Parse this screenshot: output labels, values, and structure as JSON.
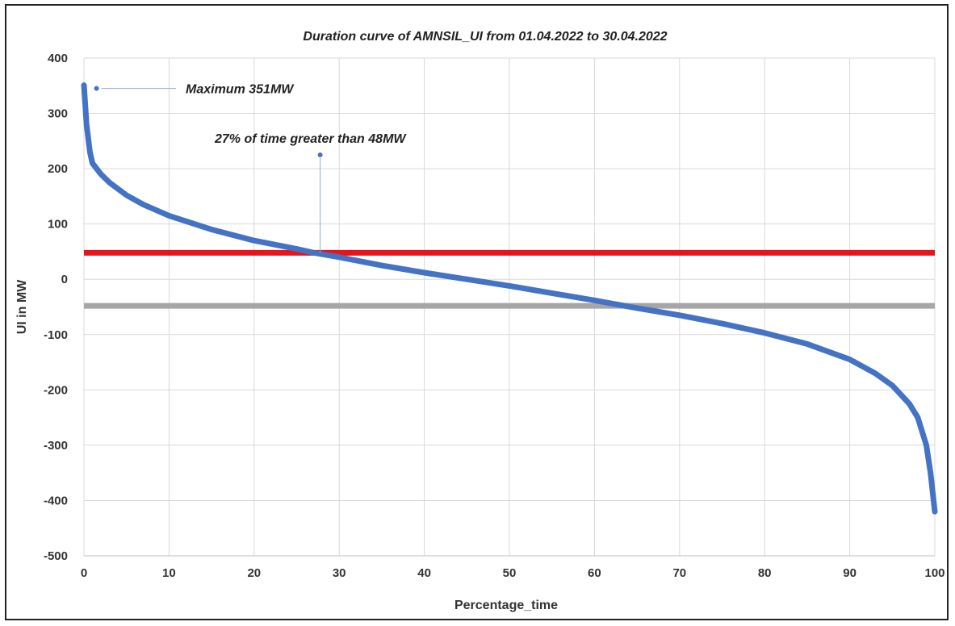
{
  "chart_data": {
    "type": "line",
    "title": "Duration curve of AMNSIL_UI from 01.04.2022 to 30.04.2022",
    "xlabel": "Percentage_time",
    "ylabel": "UI in MW",
    "xlim": [
      0,
      100
    ],
    "ylim": [
      -500,
      400
    ],
    "xticks": [
      0,
      10,
      20,
      30,
      40,
      50,
      60,
      70,
      80,
      90,
      100
    ],
    "yticks": [
      400,
      300,
      200,
      100,
      0,
      -100,
      -200,
      -300,
      -400,
      -500
    ],
    "grid": true,
    "legend": "none",
    "series": [
      {
        "color": "#4472C4",
        "x": [
          0,
          0.3,
          0.7,
          1,
          2,
          3,
          5,
          7,
          10,
          15,
          20,
          25,
          27,
          30,
          35,
          40,
          45,
          50,
          55,
          60,
          65,
          70,
          75,
          80,
          85,
          90,
          93,
          95,
          97,
          98,
          99,
          99.5,
          100
        ],
        "y": [
          351,
          280,
          230,
          210,
          190,
          175,
          152,
          135,
          115,
          90,
          70,
          55,
          48,
          40,
          25,
          12,
          0,
          -12,
          -25,
          -38,
          -52,
          -65,
          -80,
          -97,
          -117,
          -145,
          -170,
          -192,
          -225,
          -250,
          -300,
          -350,
          -420
        ]
      }
    ],
    "reference_lines": [
      {
        "y": 48,
        "color": "#E8141C"
      },
      {
        "y": -48,
        "color": "#A6A6A6"
      }
    ],
    "annotations": [
      {
        "text": "Maximum 351MW",
        "x": 1,
        "y": 351
      },
      {
        "text": "27% of time greater than 48MW",
        "x": 27,
        "y": 225
      }
    ]
  }
}
